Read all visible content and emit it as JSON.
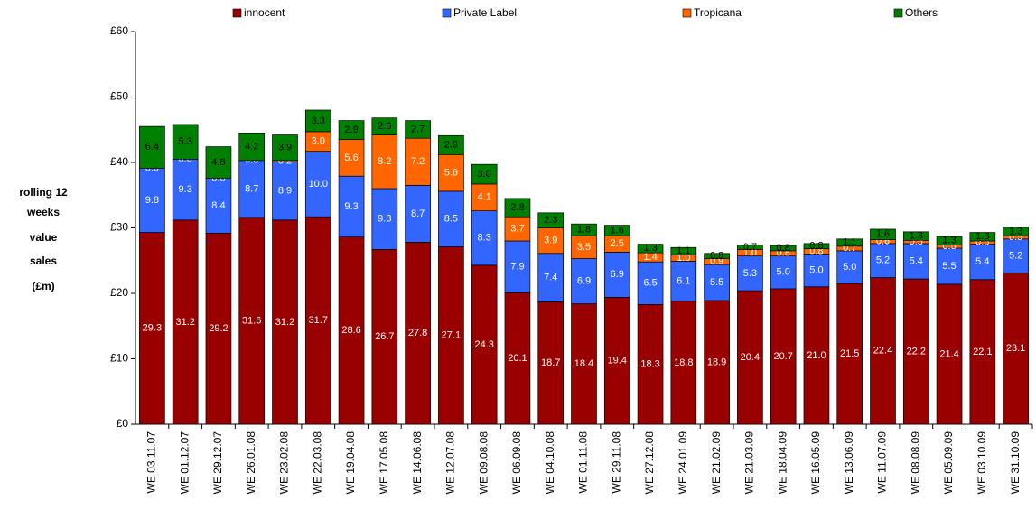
{
  "chart_data": {
    "type": "stacked-bar",
    "y_label_lines": [
      "rolling 12",
      "weeks",
      "value",
      "sales",
      "(£m)"
    ],
    "categories": [
      "WE 03.11.07",
      "WE 01.12.07",
      "WE 29.12.07",
      "WE 26.01.08",
      "WE 23.02.08",
      "WE 22.03.08",
      "WE 19.04.08",
      "WE 17.05.08",
      "WE 14.06.08",
      "WE 12.07.08",
      "WE 09.08.08",
      "WE 06.09.08",
      "WE 04.10.08",
      "WE 01.11.08",
      "WE 29.11.08",
      "WE 27.12.08",
      "WE 24.01.09",
      "WE 21.02.09",
      "WE 21.03.09",
      "WE 18.04.09",
      "WE 16.05.09",
      "WE 13.06.09",
      "WE 11.07.09",
      "WE 08.08.09",
      "WE 05.09.09",
      "WE 03.10.09",
      "WE 31.10.09"
    ],
    "series": [
      {
        "name": "innocent",
        "color": "#990000",
        "label_color": "#ffffff",
        "values": [
          29.3,
          31.2,
          29.2,
          31.6,
          31.2,
          31.7,
          28.6,
          26.7,
          27.8,
          27.1,
          24.3,
          20.1,
          18.7,
          18.4,
          19.4,
          18.3,
          18.8,
          18.9,
          20.4,
          20.7,
          21.0,
          21.5,
          22.4,
          22.2,
          21.4,
          22.1,
          23.1
        ],
        "value_labels": [
          "29.3",
          "31.2",
          "29.2",
          "31.6",
          "31.2",
          "31.7",
          "28.6",
          "26.7",
          "27.8",
          "27.1",
          "24.3",
          "20.1",
          "18.7",
          "18.4",
          "19.4",
          "18.3",
          "18.8",
          "18.9",
          "20.4",
          "20.7",
          "21.0",
          "21.5",
          "22.4",
          "22.2",
          "21.4",
          "22.1",
          "23.1"
        ]
      },
      {
        "name": "Private Label",
        "color": "#3366ff",
        "label_color": "#ffffff",
        "values": [
          9.8,
          9.3,
          8.4,
          8.7,
          8.9,
          10.0,
          9.3,
          9.3,
          8.7,
          8.5,
          8.3,
          7.9,
          7.4,
          6.9,
          6.9,
          6.5,
          6.1,
          5.5,
          5.3,
          5.0,
          5.0,
          5.0,
          5.2,
          5.4,
          5.5,
          5.4,
          5.2
        ],
        "value_labels": [
          "9.8",
          "9.3",
          "8.4",
          "8.7",
          "8.9",
          "10.0",
          "9.3",
          "9.3",
          "8.7",
          "8.5",
          "8.3",
          "7.9",
          "7.4",
          "6.9",
          "6.9",
          "6.5",
          "6.1",
          "5.5",
          "5.3",
          "5.0",
          "5.0",
          "5.0",
          "5.2",
          "5.4",
          "5.5",
          "5.4",
          "5.2"
        ]
      },
      {
        "name": "Tropicana",
        "color": "#ff6600",
        "label_color": "#ffffff",
        "values": [
          0.0,
          0.0,
          0.0,
          0.0,
          0.2,
          3.0,
          5.6,
          8.2,
          7.2,
          5.6,
          4.1,
          3.7,
          3.9,
          3.5,
          2.5,
          1.4,
          1.0,
          0.9,
          1.0,
          0.8,
          0.8,
          0.7,
          0.6,
          0.5,
          0.5,
          0.5,
          0.5
        ],
        "value_labels": [
          "0.0",
          "0.0",
          "0.0",
          "0.0",
          "0.2",
          "3.0",
          "5.6",
          "8.2",
          "7.2",
          "5.6",
          "4.1",
          "3.7",
          "3.9",
          "3.5",
          "2.5",
          "1.4",
          "1.0",
          "0.9",
          "1.0",
          "0.8",
          "0.8",
          "0.7",
          "0.6",
          "0.5",
          "0.5",
          "0.5",
          "0.5"
        ]
      },
      {
        "name": "Others",
        "color": "#008000",
        "label_color": "#000000",
        "values": [
          6.4,
          5.3,
          4.8,
          4.2,
          3.9,
          3.3,
          2.9,
          2.6,
          2.7,
          2.9,
          3.0,
          2.8,
          2.3,
          1.8,
          1.6,
          1.3,
          1.1,
          0.8,
          0.7,
          0.8,
          0.8,
          1.1,
          1.6,
          1.3,
          1.3,
          1.3,
          1.3
        ],
        "value_labels": [
          "6.4",
          "5.3",
          "4.8",
          "4.2",
          "3.9",
          "3.3",
          "2.9",
          "2.6",
          "2.7",
          "2.9",
          "3.0",
          "2.8",
          "2.3",
          "1.8",
          "1.6",
          "1.3",
          "1.1",
          "0.8",
          "0.7",
          "0.8",
          "0.8",
          "1.1",
          "1.6",
          "1.3",
          "1.3",
          "1.3",
          "1.3"
        ]
      }
    ],
    "ylim": [
      0,
      60
    ],
    "yticks": [
      {
        "value": 0,
        "label": "£0"
      },
      {
        "value": 10,
        "label": "£10"
      },
      {
        "value": 20,
        "label": "£20"
      },
      {
        "value": 30,
        "label": "£30"
      },
      {
        "value": 40,
        "label": "£40"
      },
      {
        "value": 50,
        "label": "£50"
      },
      {
        "value": 60,
        "label": "£60"
      }
    ],
    "grid": false,
    "legend": "top"
  }
}
